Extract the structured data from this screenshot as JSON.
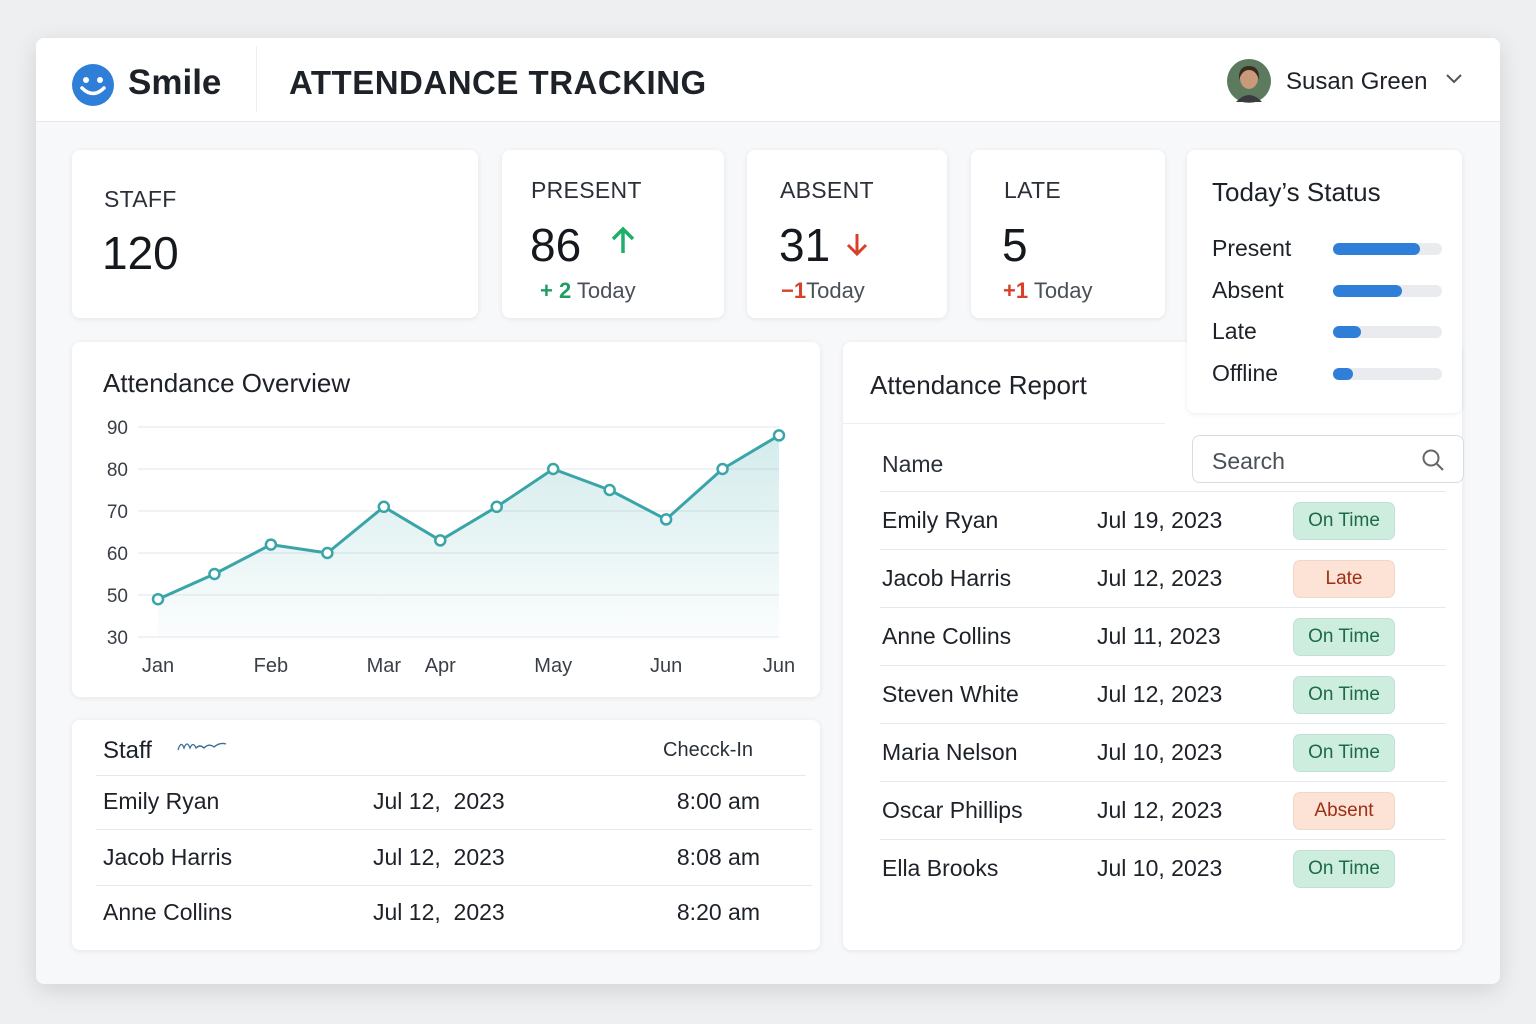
{
  "header": {
    "brand": "Smile",
    "title": "ATTENDANCE TRACKING",
    "user": "Susan Green"
  },
  "stats": [
    {
      "label": "STAFF",
      "value": "120"
    },
    {
      "label": "PRESENT",
      "value": "86",
      "change": "+ 2",
      "change_text": "Today",
      "change_color": "#1f9d63"
    },
    {
      "label": "ABSENT",
      "value": "31",
      "change": "−1",
      "change_text": "Today",
      "change_color": "#d9402b"
    },
    {
      "label": "LATE",
      "value": "5",
      "change": "+1",
      "change_text": "Today",
      "change_color": "#d9402b"
    }
  ],
  "status": {
    "title": "Today’s Status",
    "color": "#2f7fd8",
    "items": [
      {
        "label": "Present",
        "value": 80
      },
      {
        "label": "Absent",
        "value": 63
      },
      {
        "label": "Late",
        "value": 26
      },
      {
        "label": "Offline",
        "value": 18
      }
    ]
  },
  "chart_data": {
    "type": "line",
    "title": "Attendance Overview",
    "categories": [
      "Jan",
      null,
      "Feb",
      null,
      "Mar",
      "Apr",
      null,
      "May",
      null,
      "Jun",
      null,
      "Jun"
    ],
    "series": [
      {
        "name": "Attendance",
        "color": "#3aa5a8",
        "values": [
          48,
          55,
          62,
          60,
          71,
          63,
          71,
          80,
          75,
          68,
          80,
          88
        ]
      }
    ],
    "ylim": [
      30,
      90
    ],
    "yticks": [
      30,
      50,
      60,
      70,
      80,
      90
    ],
    "grid": true,
    "area": true
  },
  "staff_table": {
    "title": "Staff",
    "checkin_header": "Checck-In",
    "rows": [
      [
        "Emily Ryan",
        "Jul 12,  2023",
        "8:00 am"
      ],
      [
        "Jacob Harris",
        "Jul 12,  2023",
        "8:08 am"
      ],
      [
        "Anne Collins",
        "Jul 12,  2023",
        "8:20 am"
      ]
    ]
  },
  "report": {
    "title": "Attendance Report",
    "name_header": "Name",
    "search_placeholder": "Search",
    "rows": [
      {
        "name": "Emily Ryan",
        "date": "Jul 19, 2023",
        "status": "On Time",
        "status_bg": "#cdeedf",
        "status_fg": "#1d6a47"
      },
      {
        "name": "Jacob Harris",
        "date": "Jul 12, 2023",
        "status": "Late",
        "status_bg": "#fde2d6",
        "status_fg": "#9c2f16"
      },
      {
        "name": "Anne Collins",
        "date": "Jul 11, 2023",
        "status": "On Time",
        "status_bg": "#cdeedf",
        "status_fg": "#1d6a47"
      },
      {
        "name": "Steven White",
        "date": "Jul 12, 2023",
        "status": "On Time",
        "status_bg": "#cdeedf",
        "status_fg": "#1d6a47"
      },
      {
        "name": "Maria Nelson",
        "date": "Jul 10, 2023",
        "status": "On Time",
        "status_bg": "#cdeedf",
        "status_fg": "#1d6a47"
      },
      {
        "name": "Oscar Phillips",
        "date": "Jul 12, 2023",
        "status": "Absent",
        "status_bg": "#fde2d6",
        "status_fg": "#9c2f16"
      },
      {
        "name": "Ella Brooks",
        "date": "Jul 10, 2023",
        "status": "On Time",
        "status_bg": "#cdeedf",
        "status_fg": "#1d6a47"
      }
    ]
  }
}
